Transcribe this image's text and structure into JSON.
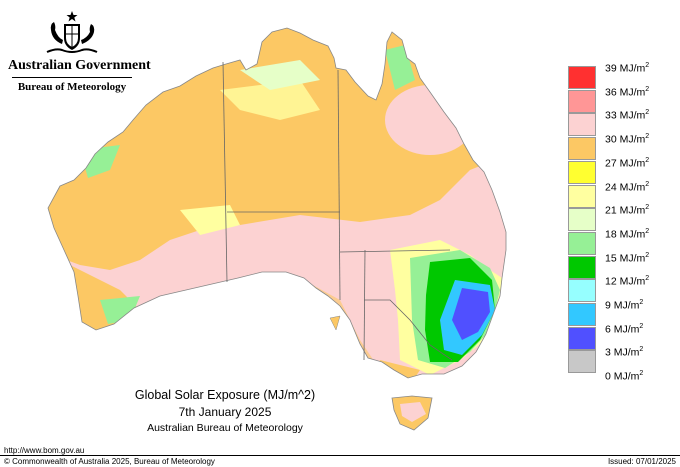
{
  "header": {
    "government": "Australian Government",
    "bureau": "Bureau of Meteorology"
  },
  "map": {
    "title": "Global Solar Exposure (MJ/m^2)",
    "date": "7th January 2025",
    "source": "Australian Bureau of Meteorology"
  },
  "legend": {
    "unit": "MJ/m",
    "unit_exponent": "2",
    "items": [
      {
        "value": "39",
        "color": "#ff3030"
      },
      {
        "value": "36",
        "color": "#ff9696"
      },
      {
        "value": "33",
        "color": "#fcd2d2"
      },
      {
        "value": "30",
        "color": "#fcc864"
      },
      {
        "value": "27",
        "color": "#ffff30"
      },
      {
        "value": "24",
        "color": "#ffffa0"
      },
      {
        "value": "21",
        "color": "#e6ffc8"
      },
      {
        "value": "18",
        "color": "#96f096"
      },
      {
        "value": "15",
        "color": "#00c800"
      },
      {
        "value": "12",
        "color": "#96ffff"
      },
      {
        "value": "9",
        "color": "#32c8ff"
      },
      {
        "value": "6",
        "color": "#5050ff"
      },
      {
        "value": "3",
        "color": "#c8c8c8"
      }
    ],
    "bottom_label": "0"
  },
  "footer": {
    "url": "http://www.bom.gov.au",
    "copyright": "© Commonwealth of Australia 2025, Bureau of Meteorology",
    "issued": "Issued: 07/01/2025"
  }
}
